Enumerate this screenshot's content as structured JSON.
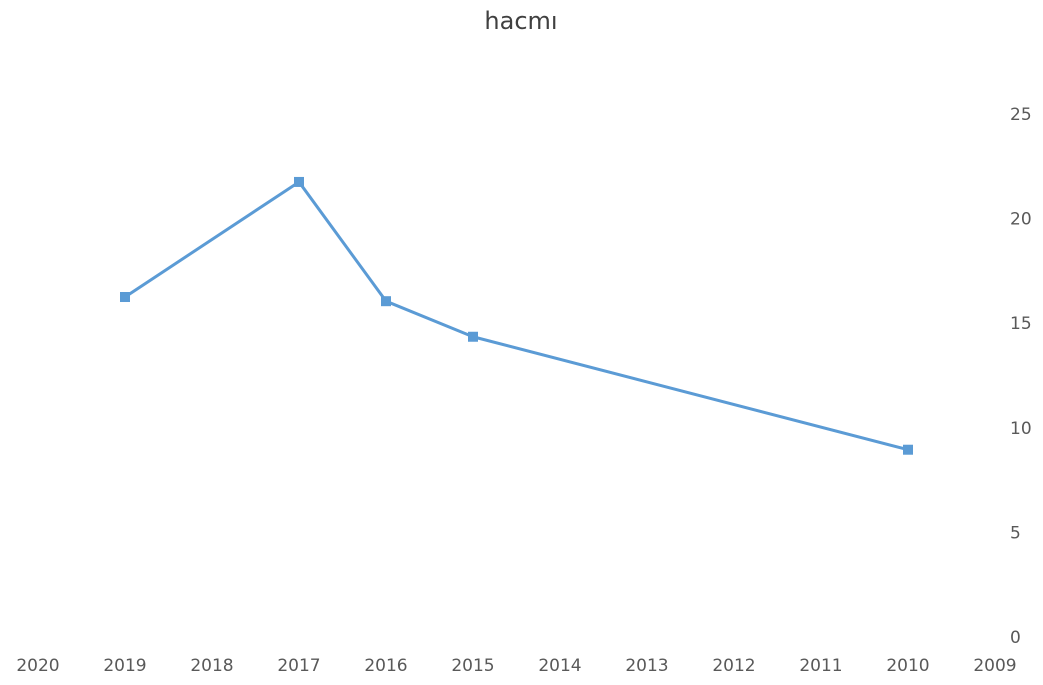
{
  "chart_data": {
    "type": "line",
    "title": "hacmı",
    "x": [
      2019,
      2017,
      2016,
      2015,
      2010
    ],
    "series": [
      {
        "name": "hacmı",
        "color": "#5b9bd5",
        "values": [
          16.3,
          21.8,
          16.1,
          14.4,
          9.0
        ]
      }
    ],
    "xlim": [
      2020,
      2009
    ],
    "xticks": [
      2020,
      2019,
      2018,
      2017,
      2016,
      2015,
      2014,
      2013,
      2012,
      2011,
      2010,
      2009
    ],
    "ylim": [
      0,
      25
    ],
    "yticks": [
      0,
      5,
      10,
      15,
      20,
      25
    ],
    "y_axis_side": "right",
    "grid": false
  }
}
